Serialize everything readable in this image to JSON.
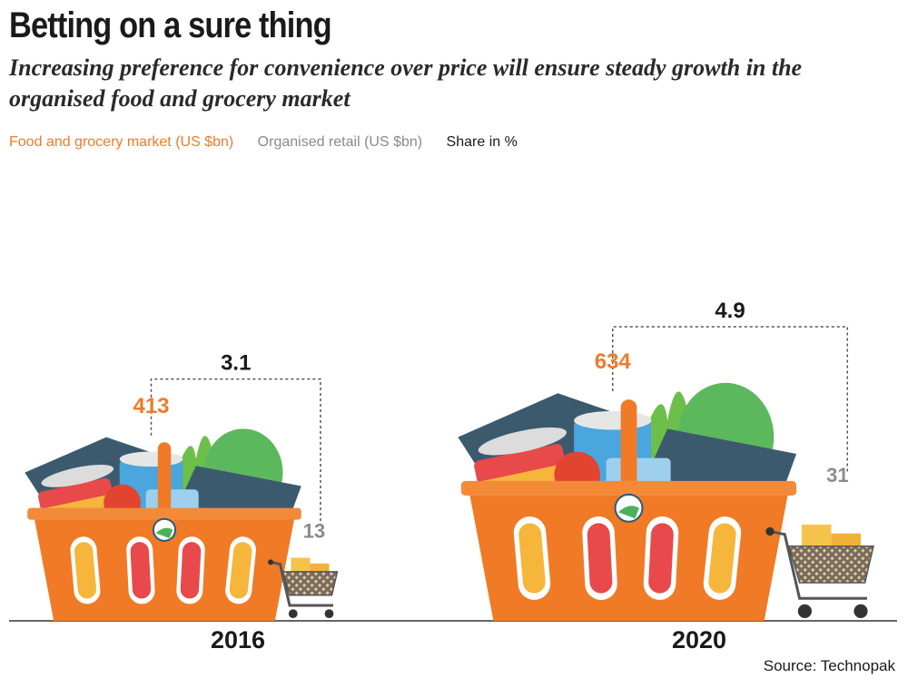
{
  "header": {
    "title": "Betting on a sure thing",
    "subtitle": "Increasing preference for convenience over price will ensure steady growth in the organised food and grocery market"
  },
  "legend": {
    "market": "Food and grocery market (US $bn)",
    "retail": "Organised retail (US $bn)",
    "share": "Share in %"
  },
  "source": "Source: Technopak",
  "colors": {
    "market": "#ef7a2b",
    "retail": "#8c8c8c",
    "share": "#1a1a1a",
    "basket": "#f07a26",
    "box_dark": "#3c5a6e",
    "can_red": "#e8494a",
    "can_blue": "#4aa6dc",
    "greens": "#5cb85c"
  },
  "icons": [
    "grocery-basket-icon",
    "shopping-cart-icon"
  ],
  "chart_data": {
    "type": "bar",
    "categories": [
      "2016",
      "2020"
    ],
    "series": [
      {
        "name": "Food and grocery market (US $bn)",
        "values": [
          413,
          634
        ]
      },
      {
        "name": "Organised retail (US $bn)",
        "values": [
          13,
          31
        ]
      },
      {
        "name": "Share in %",
        "values": [
          3.1,
          4.9
        ]
      }
    ],
    "labels": {
      "market": [
        "413",
        "634"
      ],
      "retail": [
        "13",
        "31"
      ],
      "share": [
        "3.1",
        "4.9"
      ]
    },
    "title": "Betting on a sure thing",
    "xlabel": "",
    "ylabel": ""
  }
}
